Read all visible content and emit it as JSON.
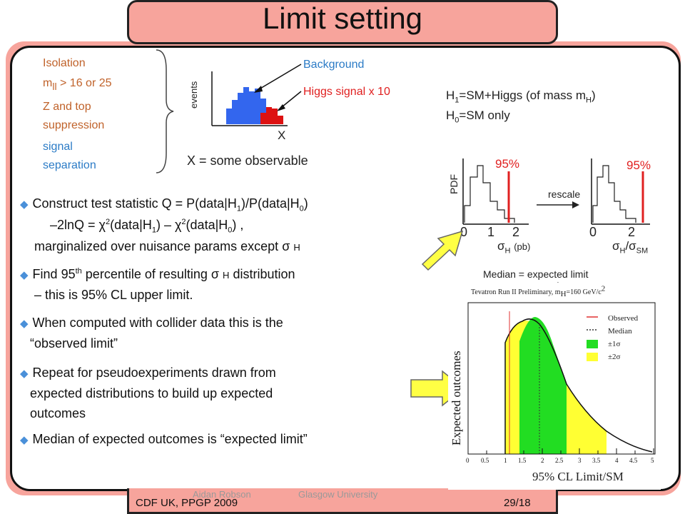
{
  "slide": {
    "title": "Limit setting",
    "footer_left": "CDF UK, PPGP 2009",
    "footer_page": "29/18",
    "footer_author": "Aidan Robson",
    "footer_institution": "Glasgow University"
  },
  "cuts": {
    "isolation": "Isolation",
    "mll_prefix": "m",
    "mll_sub": "ll",
    "mll_suffix": "> 16 or 25",
    "ztop_line1": "Z and top",
    "ztop_line2": "suppression",
    "signal_line1": "signal",
    "signal_line2": "separation"
  },
  "mini_hist": {
    "ylabel": "events",
    "xlabel": "X",
    "background_label": "Background",
    "signal_label": "Higgs signal x 10",
    "caption": "X = some observable"
  },
  "hypotheses": {
    "h1_text": "=SM+Higgs (of mass m",
    "h0_text": "=SM only"
  },
  "pdf_plots": {
    "ylabel": "PDF",
    "pct_left": "95%",
    "pct_right": "95%",
    "rescale": "rescale",
    "ticks_left": [
      "0",
      "1",
      "2"
    ],
    "ticks_right": [
      "0",
      "2"
    ],
    "xlabel_left_unit": "(pb)"
  },
  "bullets": {
    "b1_line1": "Construct test statistic Q = P(data|H",
    "b1_line3": "marginalized over nuisance params except",
    "b2_line1a": "Find 95",
    "b2_line1b": "percentile of resulting",
    "b2_line1c": "distribution",
    "b2_line2": "– this is 95% CL upper limit.",
    "b3_line1": "When computed with collider data this is the",
    "b3_line2": "“observed limit”",
    "b4_line1": "Repeat for pseudoexperiments drawn from",
    "b4_line2": "expected distributions to build up expected",
    "b4_line3": "outcomes",
    "b5_line1": "Median of expected outcomes is “expected limit”"
  },
  "median_label": "Median = expected limit",
  "tevatron_plot": {
    "header": "Tevatron Run II Preliminary, m",
    "header_tail": "=160 GeV/c",
    "ylabel": "Expected outcomes",
    "xlabel": "95% CL Limit/SM",
    "legend": [
      {
        "label": "Observed",
        "color": "#e03030"
      },
      {
        "label": "Median",
        "color": "#333333"
      },
      {
        "label": "±1σ",
        "color": "#22dd22"
      },
      {
        "label": "±2σ",
        "color": "#ffff33"
      }
    ],
    "xticks": [
      "0",
      "0.5",
      "1",
      "1.5",
      "2",
      "2.5",
      "3",
      "3.5",
      "4",
      "4.5",
      "5"
    ]
  },
  "colors": {
    "accent_pink": "#f7a49c",
    "background_hist": "#3366ee",
    "signal_hist": "#dd1111",
    "one_sigma": "#22dd22",
    "two_sigma": "#ffff33",
    "arrow_fill": "#ffff44"
  }
}
